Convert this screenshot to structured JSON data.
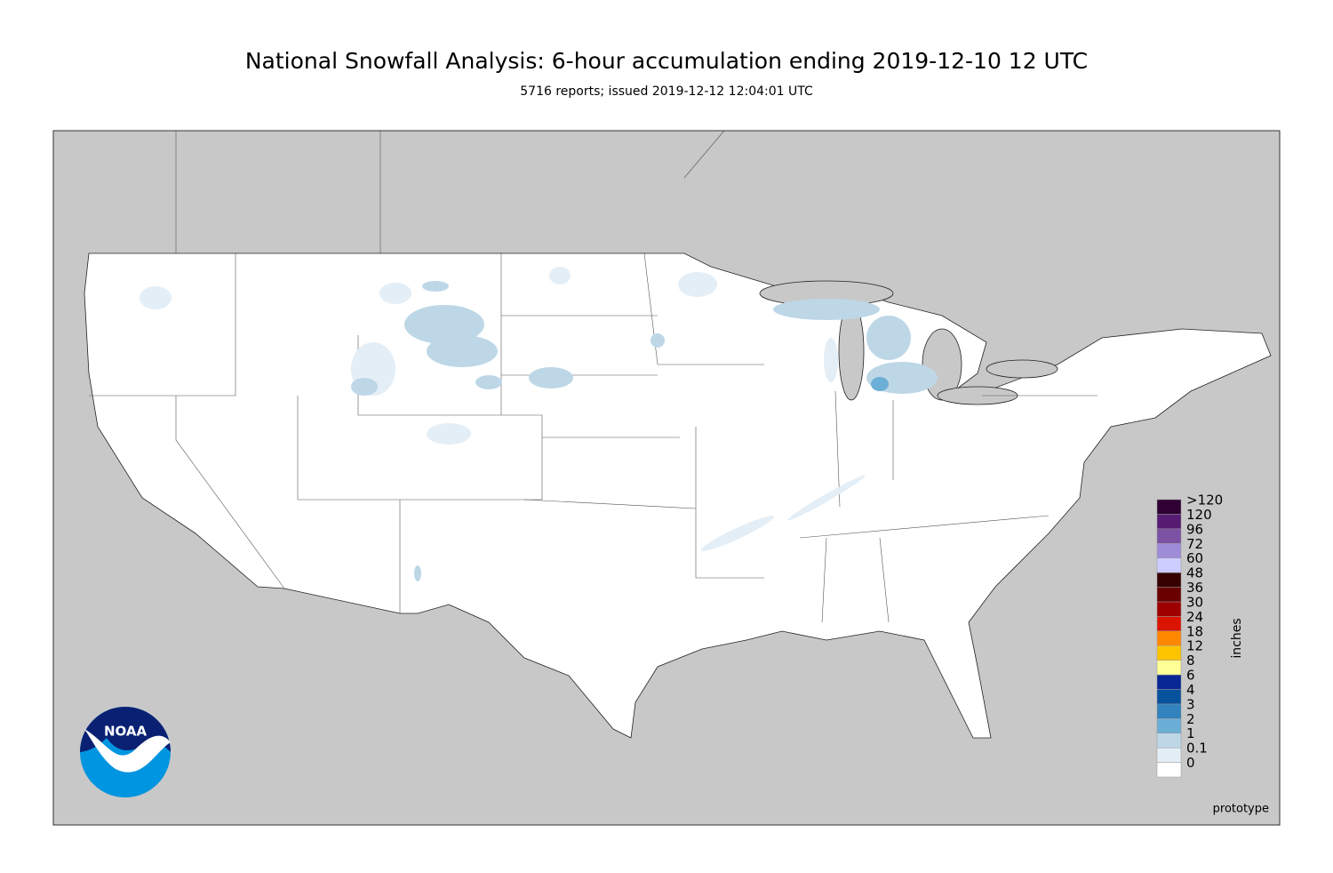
{
  "header": {
    "title": "National Snowfall Analysis: 6-hour accumulation ending 2019-12-10 12 UTC",
    "subtitle": "5716 reports; issued 2019-12-12 12:04:01 UTC"
  },
  "legend": {
    "unit": "inches",
    "entries": [
      {
        "label": "0",
        "color": "#ffffff"
      },
      {
        "label": "0.1",
        "color": "#e4eef6"
      },
      {
        "label": "1",
        "color": "#bdd7e7"
      },
      {
        "label": "2",
        "color": "#6baed6"
      },
      {
        "label": "3",
        "color": "#3182bd"
      },
      {
        "label": "4",
        "color": "#08519c"
      },
      {
        "label": "6",
        "color": "#082694"
      },
      {
        "label": "8",
        "color": "#ffff96"
      },
      {
        "label": "12",
        "color": "#ffc400"
      },
      {
        "label": "18",
        "color": "#ff8700"
      },
      {
        "label": "24",
        "color": "#db1400"
      },
      {
        "label": "30",
        "color": "#9e0000"
      },
      {
        "label": "36",
        "color": "#690000"
      },
      {
        "label": "48",
        "color": "#360000"
      },
      {
        "label": "60",
        "color": "#ccccff"
      },
      {
        "label": "72",
        "color": "#9f8cd8"
      },
      {
        "label": "96",
        "color": "#7c52a5"
      },
      {
        "label": "120",
        "color": "#561c72"
      },
      {
        "label": ">120",
        "color": "#2e0033"
      }
    ]
  },
  "logo": {
    "text": "NOAA"
  },
  "footer": {
    "note": "prototype"
  }
}
